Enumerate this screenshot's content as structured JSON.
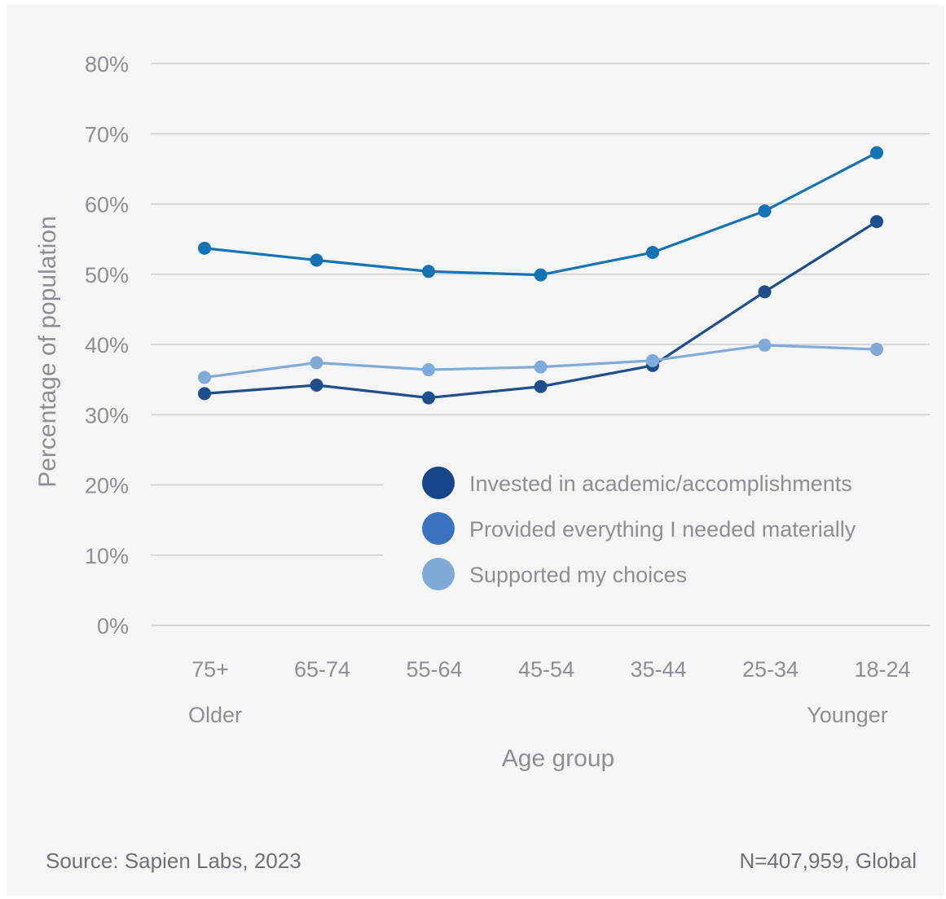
{
  "chart_data": {
    "type": "line",
    "categories": [
      "75+",
      "65-74",
      "55-64",
      "45-54",
      "35-44",
      "25-34",
      "18-24"
    ],
    "category_sublabels": {
      "first": "Older",
      "last": "Younger"
    },
    "xlabel": "Age group",
    "ylabel": "Percentage of population",
    "ylim": [
      0,
      80
    ],
    "yticks": [
      0,
      10,
      20,
      30,
      40,
      50,
      60,
      70,
      80
    ],
    "ytick_labels": [
      "0%",
      "10%",
      "20%",
      "30%",
      "40%",
      "50%",
      "60%",
      "70%",
      "80%"
    ],
    "grid": true,
    "legend_position": "bottom-right",
    "series": [
      {
        "name": "Invested in academic/accomplishments",
        "line_color": "#1f4e8c",
        "legend_color": "#17458c",
        "values": [
          33.0,
          34.2,
          32.4,
          34.0,
          37.0,
          47.5,
          57.5
        ]
      },
      {
        "name": "Provided everything I needed materially",
        "line_color": "#1473b5",
        "legend_color": "#3a73bf",
        "values": [
          53.7,
          52.0,
          50.4,
          49.9,
          53.1,
          59.0,
          67.3
        ]
      },
      {
        "name": "Supported my choices",
        "line_color": "#80abd9",
        "legend_color": "#80abd9",
        "values": [
          35.3,
          37.4,
          36.4,
          36.8,
          37.7,
          39.9,
          39.3
        ]
      }
    ]
  },
  "footer": {
    "source": "Source: Sapien Labs, 2023",
    "sample": "N=407,959, Global"
  }
}
